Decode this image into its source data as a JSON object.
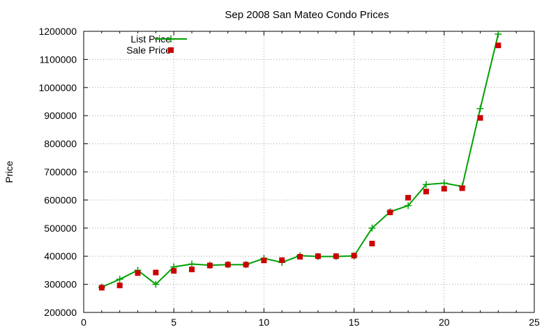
{
  "chart_data": {
    "type": "line",
    "title": "Sep 2008 San Mateo Condo Prices",
    "xlabel": "",
    "ylabel": "Price",
    "xlim": [
      0,
      25
    ],
    "ylim": [
      200000,
      1200000
    ],
    "xticks": [
      "0",
      "5",
      "10",
      "15",
      "20",
      "25"
    ],
    "yticks": [
      "200000",
      "300000",
      "400000",
      "500000",
      "600000",
      "700000",
      "800000",
      "900000",
      "1000000",
      "1100000",
      "1200000"
    ],
    "grid": true,
    "legend_position": "top-left",
    "series": [
      {
        "name": "List Price",
        "style": "line+cross",
        "color": "#00a000",
        "x": [
          1,
          2,
          3,
          4,
          5,
          6,
          7,
          8,
          9,
          10,
          11,
          12,
          13,
          14,
          15,
          16,
          17,
          18,
          19,
          20,
          21,
          22,
          23
        ],
        "values": [
          290000,
          318000,
          350000,
          300000,
          362000,
          372000,
          368000,
          370000,
          370000,
          392000,
          378000,
          402000,
          399000,
          399000,
          401000,
          500000,
          558000,
          580000,
          655000,
          660000,
          648000,
          925000,
          1190000
        ]
      },
      {
        "name": "Sale Price",
        "style": "square",
        "color": "#cc0000",
        "x": [
          1,
          2,
          3,
          4,
          5,
          6,
          7,
          8,
          9,
          10,
          11,
          12,
          13,
          14,
          15,
          16,
          17,
          18,
          19,
          20,
          21,
          22,
          23
        ],
        "values": [
          288000,
          296000,
          340000,
          342000,
          348000,
          353000,
          367000,
          370000,
          370000,
          385000,
          386000,
          398000,
          400000,
          400000,
          402000,
          445000,
          556000,
          608000,
          630000,
          640000,
          642000,
          892000,
          1150000
        ]
      }
    ]
  }
}
